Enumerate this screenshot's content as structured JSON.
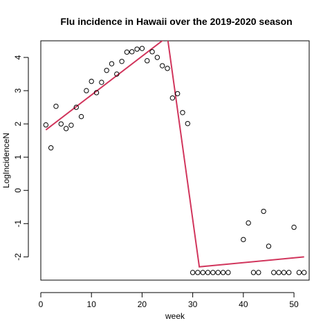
{
  "chart_data": {
    "type": "scatter",
    "title": "Flu incidence in Hawaii over the 2019-2020 season",
    "xlabel": "week",
    "ylabel": "LogIncidenceN",
    "xlim": [
      0,
      53
    ],
    "ylim": [
      -2.7,
      4.5
    ],
    "xticks": [
      0,
      10,
      20,
      30,
      40,
      50
    ],
    "yticks": [
      -2,
      -1,
      0,
      1,
      2,
      3,
      4
    ],
    "grid": false,
    "legend": "none",
    "points": {
      "x": [
        1,
        2,
        3,
        4,
        5,
        6,
        7,
        8,
        9,
        10,
        11,
        12,
        13,
        14,
        15,
        16,
        17,
        18,
        19,
        20,
        21,
        22,
        23,
        24,
        25,
        26,
        27,
        28,
        29,
        30,
        31,
        32,
        33,
        34,
        35,
        36,
        37,
        40,
        41,
        42,
        43,
        44,
        45,
        46,
        47,
        48,
        49,
        50,
        51,
        52
      ],
      "y": [
        1.97,
        1.28,
        2.53,
        2.0,
        1.86,
        1.96,
        2.5,
        2.22,
        3.0,
        3.28,
        2.94,
        3.25,
        3.61,
        3.81,
        3.5,
        3.88,
        4.16,
        4.17,
        4.25,
        4.27,
        3.9,
        4.17,
        4.0,
        3.75,
        3.67,
        2.78,
        2.91,
        2.34,
        2.01,
        -2.47,
        -2.47,
        -2.47,
        -2.47,
        -2.47,
        -2.47,
        -2.47,
        -2.47,
        -1.48,
        -0.98,
        -2.47,
        -2.47,
        -0.63,
        -1.68,
        -2.47,
        -2.47,
        -2.47,
        -2.47,
        -1.11,
        -2.47,
        -2.47
      ],
      "marker": "open-circle",
      "color": "#000000"
    },
    "fit_line": {
      "x": [
        1,
        25,
        31.3,
        52
      ],
      "y": [
        1.82,
        4.62,
        -2.3,
        -2.0
      ],
      "color": "#D1355C"
    }
  }
}
